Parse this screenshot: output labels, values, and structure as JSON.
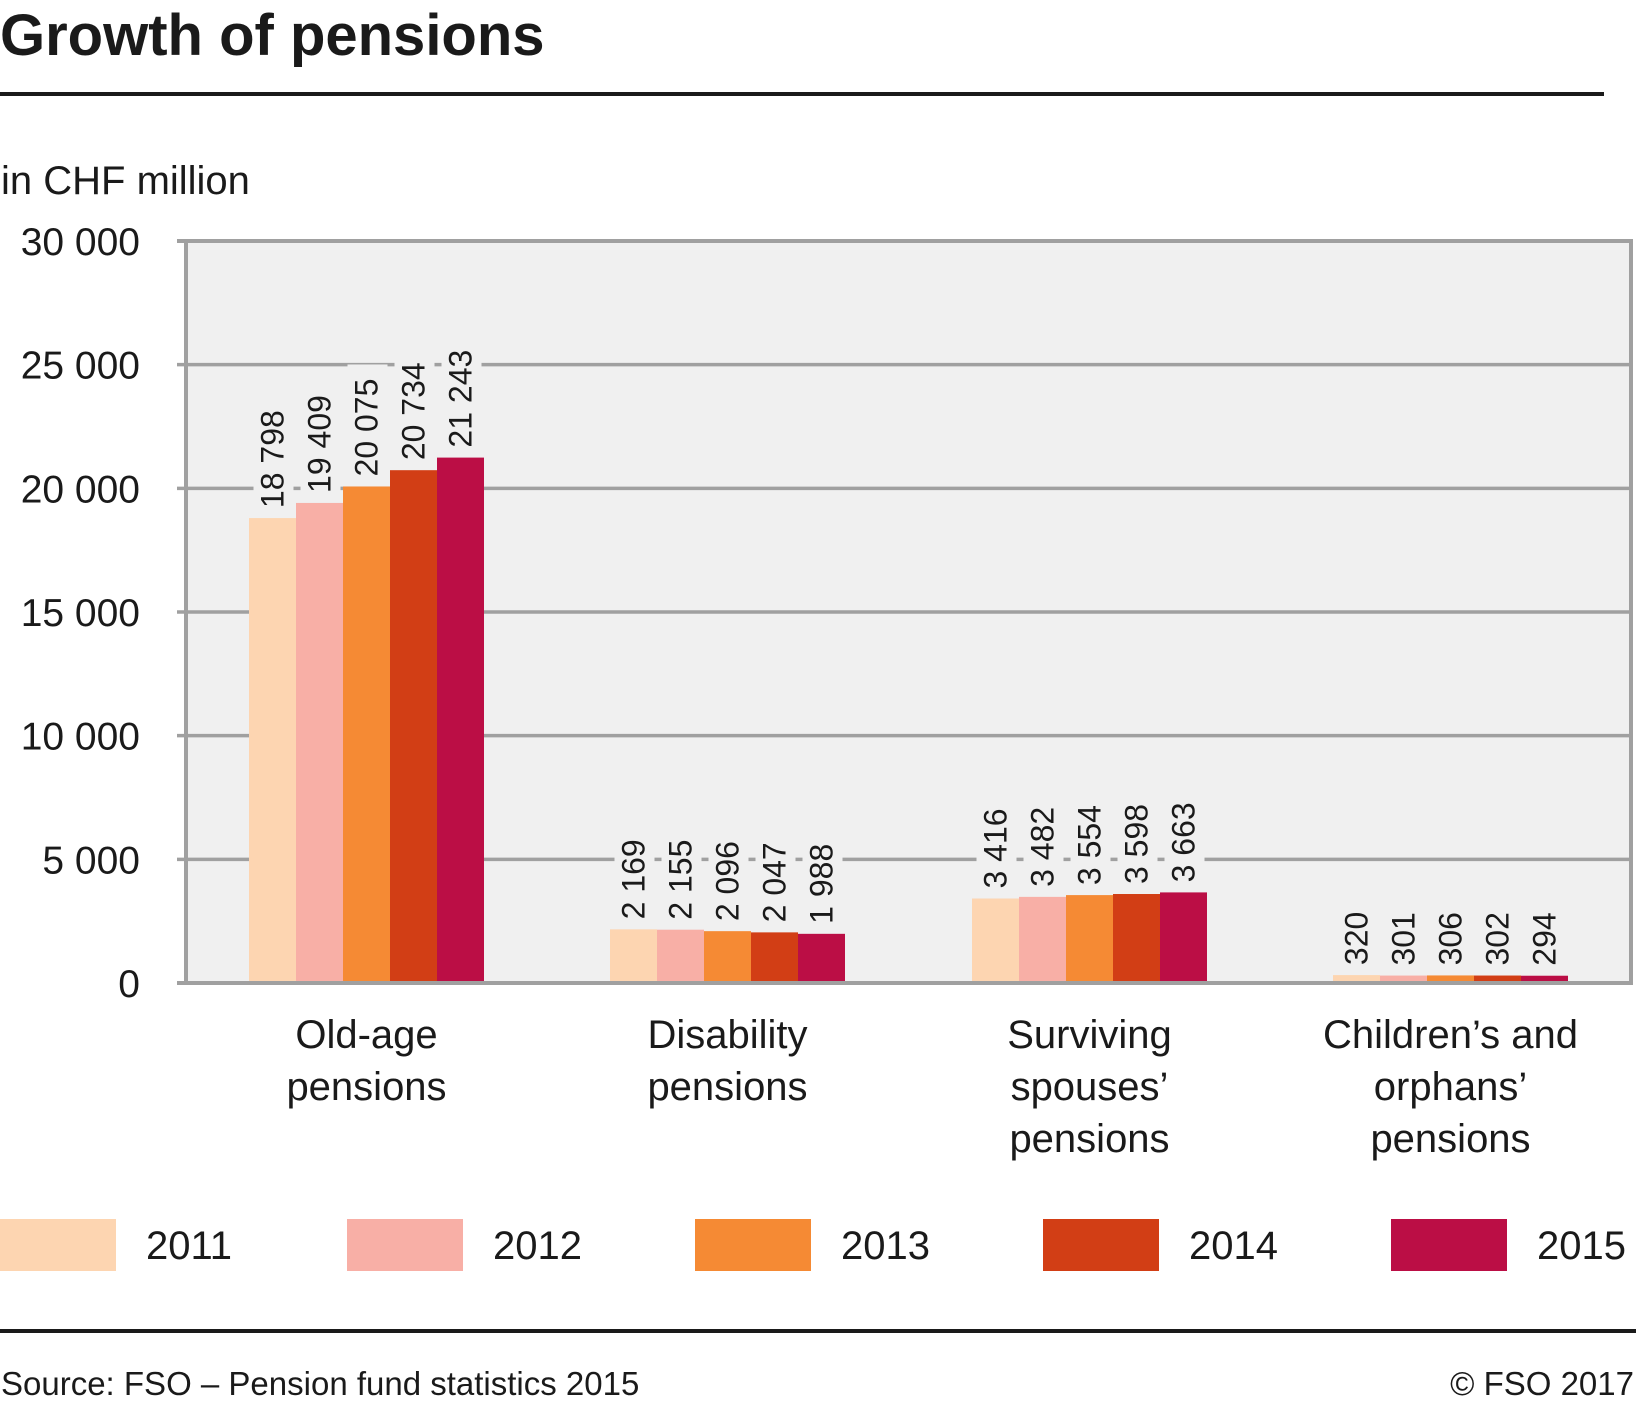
{
  "header": {
    "title": "Growth of pensions"
  },
  "footer": {
    "source": "Source: FSO – Pension fund statistics 2015",
    "copyright": "© FSO 2017"
  },
  "colors": {
    "plot_background": "#f0f0f0",
    "gridline": "#a0a0a0",
    "text": "#1a1a1a",
    "rule": "#1a1a1a"
  },
  "chart_data": {
    "type": "bar",
    "title": "Growth of pensions",
    "ylabel": "in CHF million",
    "xlabel": "",
    "ylim": [
      0,
      30000
    ],
    "yticks": [
      0,
      5000,
      10000,
      15000,
      20000,
      25000,
      30000
    ],
    "ytick_labels": [
      "0",
      "5 000",
      "10 000",
      "15 000",
      "20 000",
      "25 000",
      "30 000"
    ],
    "grid": true,
    "legend_position": "bottom",
    "categories": [
      [
        "Old-age",
        "pensions"
      ],
      [
        "Disability",
        "pensions"
      ],
      [
        "Surviving",
        "spouses’",
        "pensions"
      ],
      [
        "Children’s and",
        "orphans’",
        "pensions"
      ]
    ],
    "series": [
      {
        "name": "2011",
        "color": "#fdd5b1",
        "values": [
          18798,
          2169,
          3416,
          320
        ],
        "labels": [
          "18 798",
          "2 169",
          "3 416",
          "320"
        ]
      },
      {
        "name": "2012",
        "color": "#f8afa6",
        "values": [
          19409,
          2155,
          3482,
          301
        ],
        "labels": [
          "19 409",
          "2 155",
          "3 482",
          "301"
        ]
      },
      {
        "name": "2013",
        "color": "#f58a34",
        "values": [
          20075,
          2096,
          3554,
          306
        ],
        "labels": [
          "20 075",
          "2 096",
          "3 554",
          "306"
        ]
      },
      {
        "name": "2014",
        "color": "#d23e15",
        "values": [
          20734,
          2047,
          3598,
          302
        ],
        "labels": [
          "20 734",
          "2 047",
          "3 598",
          "302"
        ]
      },
      {
        "name": "2015",
        "color": "#bb0e45",
        "values": [
          21243,
          1988,
          3663,
          294
        ],
        "labels": [
          "21 243",
          "1 988",
          "3 663",
          "294"
        ]
      }
    ]
  }
}
